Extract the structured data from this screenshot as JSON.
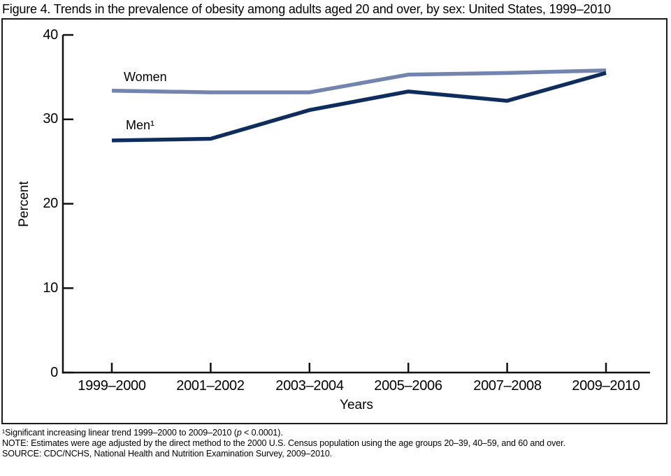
{
  "title": "Figure 4. Trends in the prevalence of obesity among adults aged 20 and over, by sex: United States, 1999–2010",
  "chart_data": {
    "type": "line",
    "categories": [
      "1999–2000",
      "2001–2002",
      "2003–2004",
      "2005–2006",
      "2007–2008",
      "2009–2010"
    ],
    "series": [
      {
        "name": "Women",
        "label": "Women",
        "values": [
          33.4,
          33.2,
          33.2,
          35.3,
          35.5,
          35.8
        ],
        "color": "#7384AE"
      },
      {
        "name": "Men",
        "label": "Men¹",
        "values": [
          27.5,
          27.7,
          31.1,
          33.3,
          32.2,
          35.5
        ],
        "color": "#0E2D5D"
      }
    ],
    "xlabel": "Years",
    "ylabel": "Percent",
    "ylim": [
      0,
      40
    ],
    "yticks": [
      0,
      10,
      20,
      30,
      40
    ],
    "grid": false,
    "legend_position": "inline-labels",
    "axis_color": "#111111"
  },
  "footnotes": {
    "note1_pre": "¹Significant increasing linear trend 1999–2000 to 2009–2010 (",
    "note1_p": "p",
    "note1_post": " < 0.0001).",
    "note2": "NOTE: Estimates were age adjusted by the direct method to the 2000 U.S. Census population using the age groups 20–39, 40–59, and 60 and over.",
    "note3": "SOURCE: CDC/NCHS, National Health and Nutrition Examination Survey, 2009–2010."
  }
}
